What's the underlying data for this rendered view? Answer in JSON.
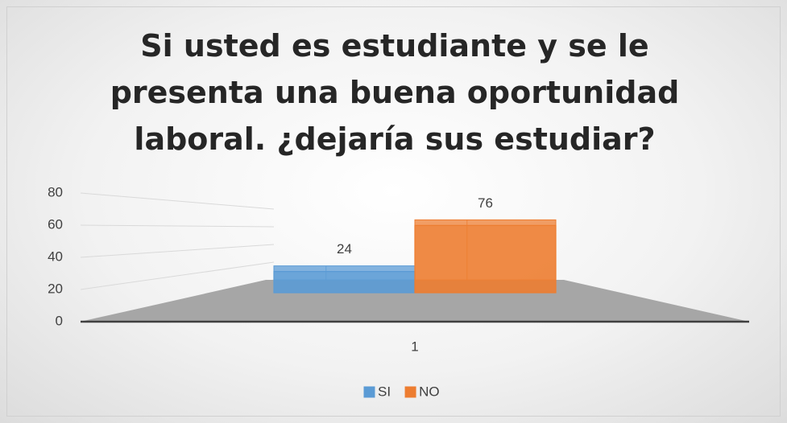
{
  "chart_data": {
    "type": "bar3d",
    "title": "Si usted es estudiante y se le presenta una buena oportunidad laboral. ¿dejaría sus estudiar?",
    "categories": [
      "1"
    ],
    "series": [
      {
        "name": "SI",
        "color": "#5b9bd5",
        "values": [
          24
        ]
      },
      {
        "name": "NO",
        "color": "#ed7d31",
        "values": [
          76
        ]
      }
    ],
    "ylim": [
      0,
      80
    ],
    "yticks": [
      0,
      20,
      40,
      60,
      80
    ],
    "grid": true,
    "legend": "bottom"
  }
}
